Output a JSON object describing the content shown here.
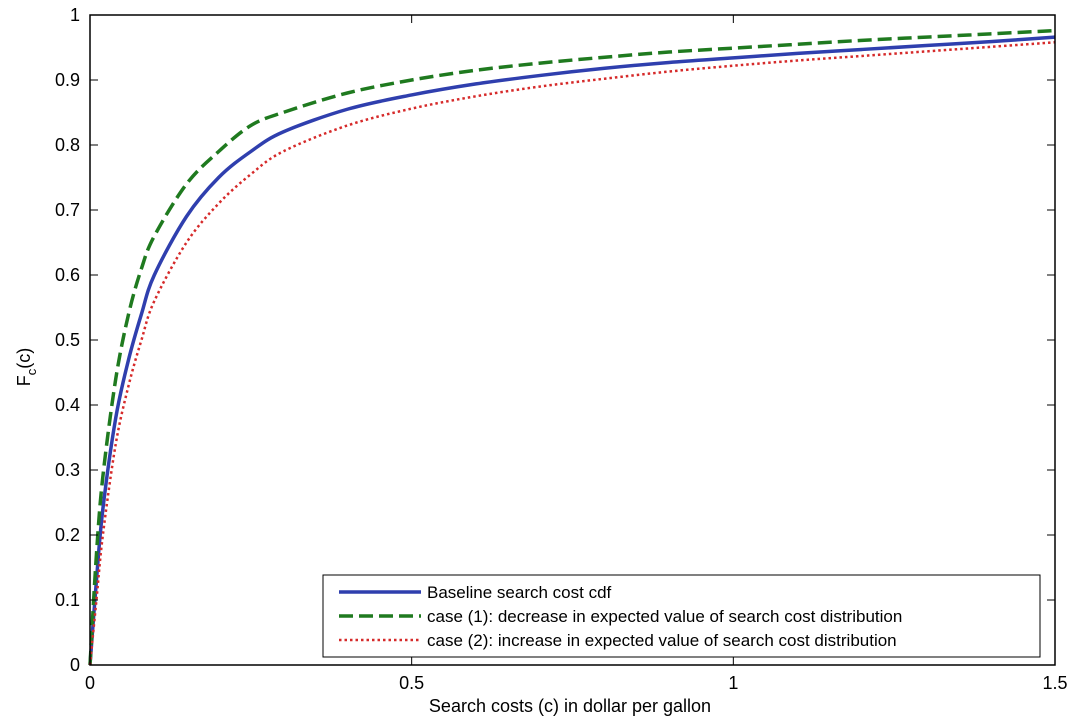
{
  "chart_data": {
    "type": "line",
    "xlabel": "Search costs (c) in dollar per gallon",
    "ylabel_main": "F",
    "ylabel_sub": "c",
    "ylabel_tail": "(c)",
    "xlim": [
      0,
      1.5
    ],
    "ylim": [
      0,
      1
    ],
    "xticks": [
      0,
      0.5,
      1,
      1.5
    ],
    "xtick_labels": [
      "0",
      "0.5",
      "1",
      "1.5"
    ],
    "yticks": [
      0,
      0.1,
      0.2,
      0.3,
      0.4,
      0.5,
      0.6,
      0.7,
      0.8,
      0.9,
      1
    ],
    "ytick_labels": [
      "0",
      "0.1",
      "0.2",
      "0.3",
      "0.4",
      "0.5",
      "0.6",
      "0.7",
      "0.8",
      "0.9",
      "1"
    ],
    "grid": false,
    "legend_position": "bottom-right",
    "x": [
      0,
      0.01,
      0.02,
      0.04,
      0.06,
      0.08,
      0.1,
      0.15,
      0.2,
      0.25,
      0.3,
      0.4,
      0.5,
      0.6,
      0.7,
      0.8,
      0.9,
      1.0,
      1.1,
      1.2,
      1.3,
      1.4,
      1.5
    ],
    "series": [
      {
        "name": "Baseline search cost cdf",
        "color": "#2f3fae",
        "style": "solid",
        "values": [
          0,
          0.13,
          0.24,
          0.38,
          0.47,
          0.54,
          0.6,
          0.69,
          0.75,
          0.79,
          0.82,
          0.855,
          0.877,
          0.894,
          0.907,
          0.918,
          0.927,
          0.934,
          0.941,
          0.947,
          0.953,
          0.959,
          0.966
        ]
      },
      {
        "name": "case (1): decrease in expected value of search cost distribution",
        "color": "#1f7a1f",
        "style": "dashed",
        "values": [
          0,
          0.17,
          0.29,
          0.44,
          0.54,
          0.61,
          0.66,
          0.74,
          0.79,
          0.83,
          0.85,
          0.88,
          0.9,
          0.915,
          0.926,
          0.935,
          0.943,
          0.949,
          0.955,
          0.961,
          0.966,
          0.971,
          0.976
        ]
      },
      {
        "name": "case (2): increase in expected value of search cost distribution",
        "color": "#d62a2a",
        "style": "dotted",
        "values": [
          0,
          0.1,
          0.2,
          0.34,
          0.43,
          0.5,
          0.56,
          0.65,
          0.71,
          0.755,
          0.79,
          0.83,
          0.856,
          0.875,
          0.89,
          0.902,
          0.913,
          0.922,
          0.93,
          0.937,
          0.944,
          0.951,
          0.958
        ]
      }
    ]
  }
}
